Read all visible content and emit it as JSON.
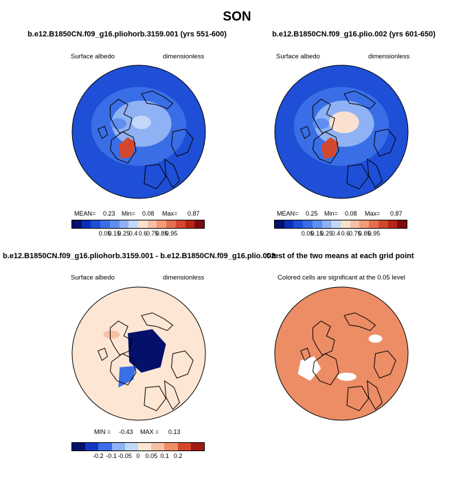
{
  "title": "SON",
  "panels": [
    {
      "title": "b.e12.B1850CN.f09_g16.pliohorb.3159.001 (yrs 551-600)",
      "left_label": "Surface albedo",
      "right_label": "dimensionless",
      "stats": {
        "mean_label": "MEAN=",
        "mean": "0.23",
        "min_label": "Min=",
        "min": "0.08",
        "max_label": "Max=",
        "max": "0.87"
      },
      "field": "albedo"
    },
    {
      "title": "b.e12.B1850CN.f09_g16.plio.002 (yrs 601-650)",
      "left_label": "Surface albedo",
      "right_label": "dimensionless",
      "stats": {
        "mean_label": "MEAN=",
        "mean": "0.25",
        "min_label": "Min=",
        "min": "0.08",
        "max_label": "Max=",
        "max": "0.87"
      },
      "field": "albedo"
    },
    {
      "title": "b.e12.B1850CN.f09_g16.pliohorb.3159.001 - b.e12.B1850CN.f09_g16.plio.002",
      "left_label": "Surface albedo",
      "right_label": "dimensionless",
      "stats": {
        "min_label": "MIN =",
        "min": "-0.43",
        "max_label": "MAX =",
        "max": "0.13"
      },
      "field": "difference"
    },
    {
      "title": "t-test of the two means at each grid point",
      "center_label": "Colored cells are significant at the 0.05 level",
      "field": "significance"
    }
  ],
  "colorbars": {
    "albedo": {
      "labels": [
        "0.05",
        "0.15",
        "0.25",
        "0.4",
        "0.6",
        "0.75",
        "0.85",
        "0.95"
      ],
      "colors": [
        "#05106b",
        "#0a2fb5",
        "#1e4fd6",
        "#3a6ee6",
        "#5f8ef0",
        "#8fb2f4",
        "#c3d7f8",
        "#f9e0cf",
        "#f7c0a4",
        "#f19b78",
        "#e4704d",
        "#d4472f",
        "#b82317",
        "#7e0b0b"
      ]
    },
    "difference": {
      "labels": [
        "-0.2",
        "-0.1",
        "-0.05",
        "0",
        "0.05",
        "0.1",
        "0.2"
      ],
      "colors": [
        "#05106b",
        "#1437c2",
        "#3a6ee6",
        "#8fb2f4",
        "#c3d7f8",
        "#fde6d4",
        "#f7c0a4",
        "#ec8d66",
        "#d4472f",
        "#a11a12"
      ]
    }
  },
  "chart_data": [
    {
      "type": "heatmap",
      "title": "b.e12.B1850CN.f09_g16.pliohorb.3159.001 (yrs 551-600)",
      "variable": "Surface albedo",
      "units": "dimensionless",
      "projection": "polar stereographic, north pole",
      "mean": 0.23,
      "min": 0.08,
      "max": 0.87,
      "levels": [
        0.05,
        0.1,
        0.15,
        0.2,
        0.25,
        0.3,
        0.4,
        0.5,
        0.6,
        0.7,
        0.75,
        0.8,
        0.85,
        0.9,
        0.95
      ]
    },
    {
      "type": "heatmap",
      "title": "b.e12.B1850CN.f09_g16.plio.002 (yrs 601-650)",
      "variable": "Surface albedo",
      "units": "dimensionless",
      "projection": "polar stereographic, north pole",
      "mean": 0.25,
      "min": 0.08,
      "max": 0.87,
      "levels": [
        0.05,
        0.1,
        0.15,
        0.2,
        0.25,
        0.3,
        0.4,
        0.5,
        0.6,
        0.7,
        0.75,
        0.8,
        0.85,
        0.9,
        0.95
      ]
    },
    {
      "type": "heatmap",
      "title": "b.e12.B1850CN.f09_g16.pliohorb.3159.001 - b.e12.B1850CN.f09_g16.plio.002",
      "variable": "Surface albedo",
      "units": "dimensionless",
      "projection": "polar stereographic, north pole",
      "min": -0.43,
      "max": 0.13,
      "levels": [
        -0.2,
        -0.1,
        -0.05,
        0,
        0.05,
        0.1,
        0.2
      ]
    },
    {
      "type": "heatmap",
      "title": "t-test of the two means at each grid point",
      "note": "Colored cells are significant at the 0.05 level",
      "projection": "polar stereographic, north pole",
      "significance_level": 0.05
    }
  ]
}
